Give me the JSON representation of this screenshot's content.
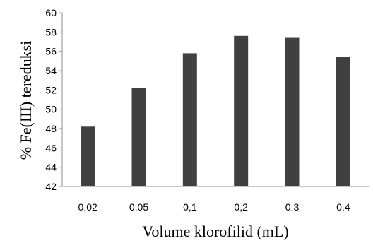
{
  "chart_data": {
    "type": "bar",
    "title": "",
    "xlabel": "Volume klorofilid (mL)",
    "ylabel": "% Fe(III) tereduksi",
    "categories": [
      "0,02",
      "0,05",
      "0,1",
      "0,2",
      "0,3",
      "0,4"
    ],
    "values": [
      48.2,
      52.2,
      55.8,
      57.6,
      57.4,
      55.4
    ],
    "ylim": [
      42,
      60
    ],
    "yticks": [
      42,
      44,
      46,
      48,
      50,
      52,
      54,
      56,
      58,
      60
    ],
    "grid": false,
    "legend": "none",
    "bar_color": "#404040"
  }
}
